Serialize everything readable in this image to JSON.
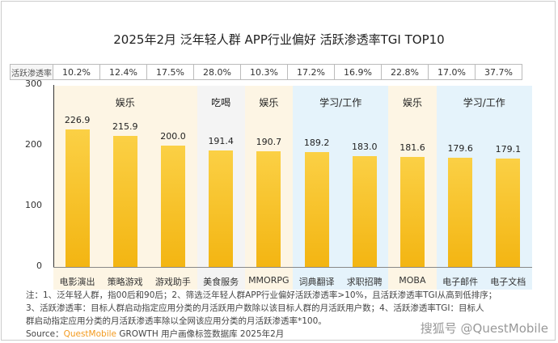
{
  "chart_data": {
    "type": "bar",
    "title": "2025年2月 泛年轻人群 APP行业偏好 活跃渗透率TGI TOP10",
    "categories": [
      "电影演出",
      "策略游戏",
      "游戏助手",
      "美食服务",
      "MMORPG",
      "词典翻译",
      "求职招聘",
      "MOBA",
      "电子邮件",
      "电子文档"
    ],
    "values": [
      226.9,
      215.9,
      200.0,
      191.4,
      190.7,
      189.2,
      183.0,
      181.6,
      179.6,
      179.1
    ],
    "value_labels": [
      "226.9",
      "215.9",
      "200.0",
      "191.4",
      "190.7",
      "189.2",
      "183.0",
      "181.6",
      "179.6",
      "179.1"
    ],
    "ylim": [
      0,
      300
    ],
    "yticks": [
      "0",
      "100",
      "200",
      "300"
    ],
    "groups": [
      {
        "label": "娱乐",
        "start": 0,
        "end": 2,
        "color": "#fdf5e4"
      },
      {
        "label": "吃喝",
        "start": 3,
        "end": 3,
        "color": "#f4f4f4"
      },
      {
        "label": "娱乐",
        "start": 4,
        "end": 4,
        "color": "#fdf5e4"
      },
      {
        "label": "学习/工作",
        "start": 5,
        "end": 6,
        "color": "#e5f3fb"
      },
      {
        "label": "娱乐",
        "start": 7,
        "end": 7,
        "color": "#fdf5e4"
      },
      {
        "label": "学习/工作",
        "start": 8,
        "end": 9,
        "color": "#e5f3fb"
      }
    ],
    "penetration_header": "活跃渗透率",
    "penetration": [
      "10.2%",
      "12.4%",
      "17.5%",
      "28.0%",
      "10.3%",
      "17.2%",
      "16.9%",
      "22.8%",
      "17.0%",
      "37.7%"
    ]
  },
  "notes": [
    "注：1、泛年轻人群，指00后和90后；2、筛选泛年轻人群APP行业偏好活跃渗透率>10%，且活跃渗透率TGI从高到低排序；",
    "3、活跃渗透率：目标人群启动指定应用分类的月活跃用户数除以该目标人群的月活跃用户数；4、活跃渗透率TGI：目标人",
    "群启动指定应用分类的月活跃渗透率除以全网该应用分类的月活跃渗透率*100。"
  ],
  "source": {
    "prefix": "Source：",
    "brand": "QuestMobile",
    "rest": " GROWTH 用户画像标签数据库 2025年2月"
  },
  "watermark": "搜狐号 @QuestMobile"
}
